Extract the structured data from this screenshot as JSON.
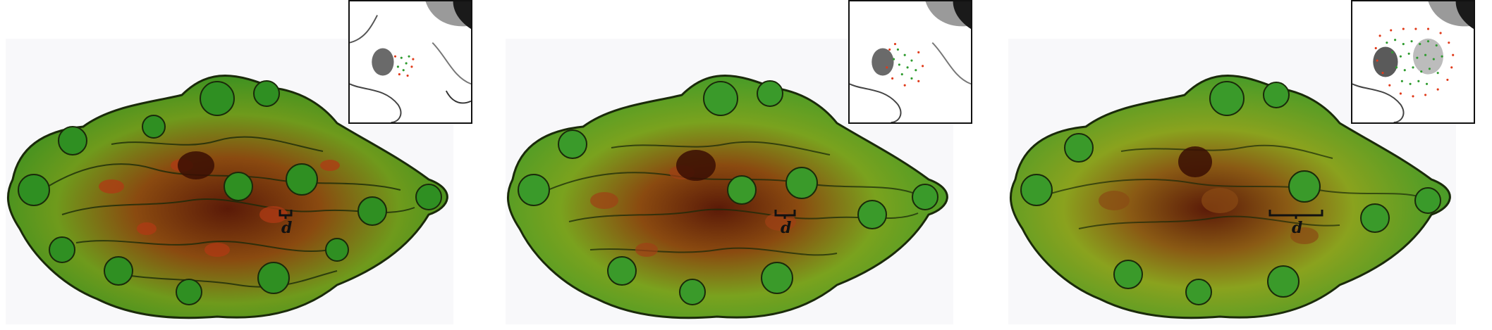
{
  "figure": {
    "panels": [
      {
        "id": "panel-1",
        "scale_label": "d",
        "scale_size": "small"
      },
      {
        "id": "panel-2",
        "scale_label": "d",
        "scale_size": "small"
      },
      {
        "id": "panel-3",
        "scale_label": "d",
        "scale_size": "large"
      }
    ],
    "colors": {
      "surface_green": "#3a9a2a",
      "surface_olive": "#8aa21e",
      "surface_brown": "#6b2a10",
      "surface_red": "#c0411a",
      "contour_line": "#1a2a0a",
      "inset_border": "#111111",
      "inset_dots_green": "#2e9b2e",
      "inset_dots_red": "#e03a1a"
    }
  }
}
